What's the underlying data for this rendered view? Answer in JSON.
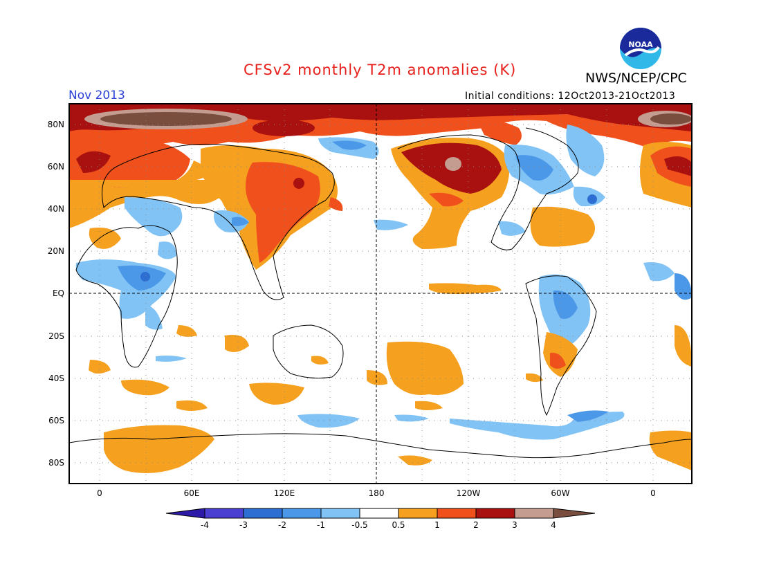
{
  "header": {
    "title": "CFSv2 monthly T2m anomalies (K)",
    "agency": "NWS/NCEP/CPC",
    "period": "Nov 2013",
    "initial_conditions": "Initial conditions: 12Oct2013-21Oct2013",
    "logo_text": "NOAA"
  },
  "map": {
    "projection": "cylindrical equidistant",
    "lat_labels": [
      "80N",
      "60N",
      "40N",
      "20N",
      "EQ",
      "20S",
      "40S",
      "60S",
      "80S"
    ],
    "lon_labels": [
      "0",
      "60E",
      "120E",
      "180",
      "120W",
      "60W",
      "0"
    ],
    "grid": "dotted 20° lines, dashed equator and 180°"
  },
  "colorbar": {
    "labels": [
      "-4",
      "-3",
      "-2",
      "-1",
      "-0.5",
      "0.5",
      "1",
      "2",
      "3",
      "4"
    ],
    "colors": [
      "#2d1aa8",
      "#4a3fd0",
      "#2d6ed2",
      "#4c98e8",
      "#82c3f5",
      "#ffffff",
      "#f5a01f",
      "#f0501c",
      "#a8110f",
      "#c49c90",
      "#7a4e3e"
    ]
  },
  "colors": {
    "title": "#e8201c",
    "period": "#2a3fd6"
  }
}
